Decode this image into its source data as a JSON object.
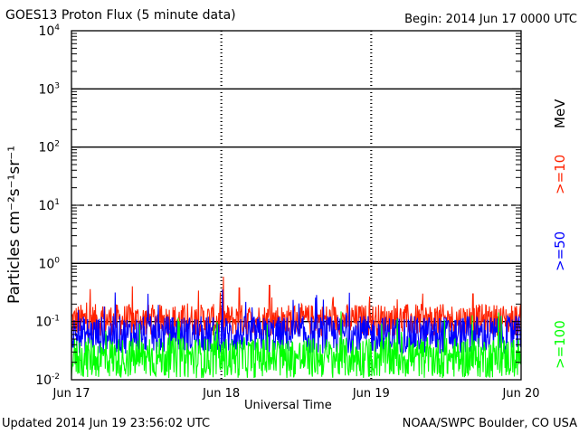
{
  "header": {
    "title": "GOES13 Proton Flux (5 minute data)",
    "begin": "Begin: 2014 Jun 17 0000 UTC"
  },
  "footer": {
    "updated": "Updated 2014 Jun 19 23:56:02 UTC",
    "credit": "NOAA/SWPC Boulder, CO USA"
  },
  "chart_data": {
    "type": "line",
    "title": "GOES13 Proton Flux (5 minute data)",
    "xlabel": "Universal Time",
    "ylabel": "Particles cm⁻²s⁻¹sr⁻¹",
    "yscale": "log",
    "ylim": [
      0.01,
      10000
    ],
    "y_ticks": [
      {
        "base": "10",
        "exp": "4",
        "value": 10000
      },
      {
        "base": "10",
        "exp": "3",
        "value": 1000
      },
      {
        "base": "10",
        "exp": "2",
        "value": 100
      },
      {
        "base": "10",
        "exp": "1",
        "value": 10
      },
      {
        "base": "10",
        "exp": "0",
        "value": 1
      },
      {
        "base": "10",
        "exp": "-1",
        "value": 0.1
      },
      {
        "base": "10",
        "exp": "-2",
        "value": 0.01
      }
    ],
    "x_ticks": [
      "Jun 17",
      "Jun 18",
      "Jun 19",
      "Jun 20"
    ],
    "xlim_days": [
      0,
      3
    ],
    "reference_lines": [
      {
        "value": 1000,
        "style": "solid"
      },
      {
        "value": 100,
        "style": "solid"
      },
      {
        "value": 10,
        "style": "dashed"
      },
      {
        "value": 1,
        "style": "solid"
      },
      {
        "value": 0.1,
        "style": "solid"
      }
    ],
    "energy_unit": "MeV",
    "series": [
      {
        "name": ">=10",
        "label": ">=10",
        "color": "#ff2200",
        "baseline": 0.1,
        "spread": 0.55,
        "spikes": [
          {
            "day": 1.12,
            "value": 0.38
          },
          {
            "day": 1.32,
            "value": 0.42
          },
          {
            "day": 2.68,
            "value": 0.3
          }
        ]
      },
      {
        "name": ">=50",
        "label": ">=50",
        "color": "#0000ff",
        "baseline": 0.055,
        "spread": 0.65
      },
      {
        "name": ">=100",
        "label": ">=100",
        "color": "#00ff00",
        "baseline": 0.022,
        "spread": 0.7
      }
    ]
  }
}
